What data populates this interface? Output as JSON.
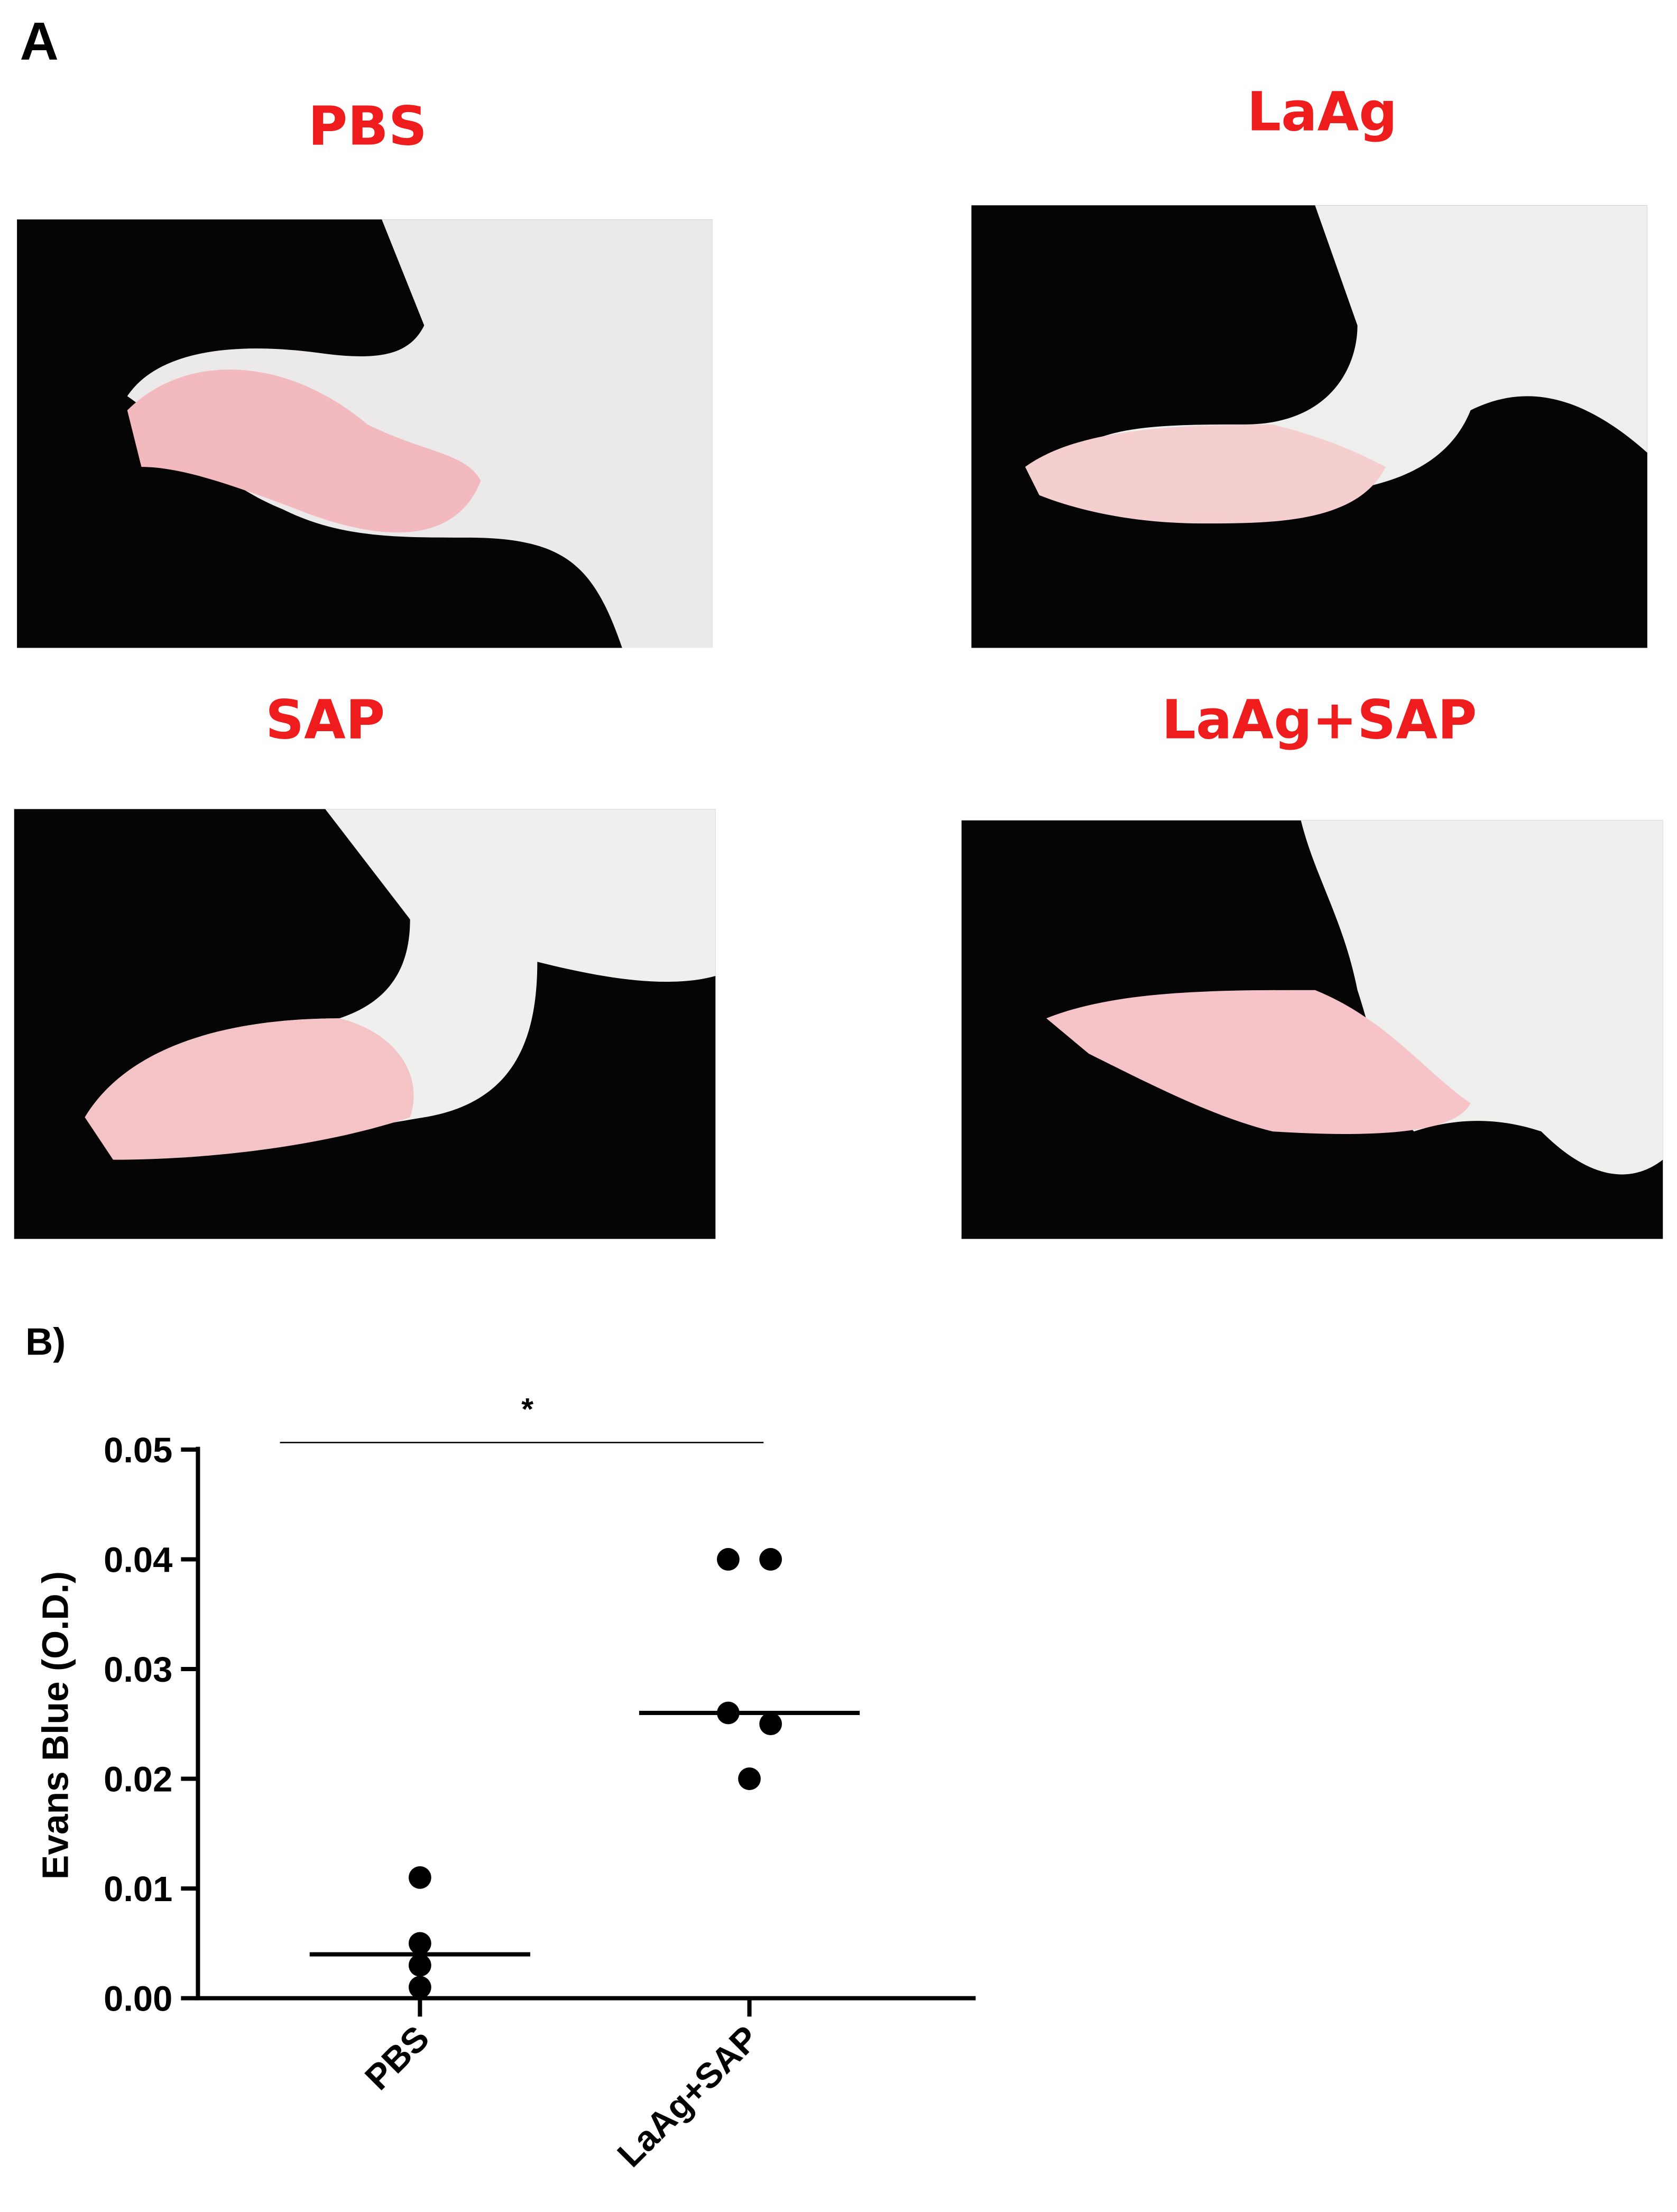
{
  "panel_a": {
    "label": "A",
    "photos": [
      {
        "label": "PBS"
      },
      {
        "label": "LaAg"
      },
      {
        "label": "SAP"
      },
      {
        "label": "LaAg+SAP"
      }
    ]
  },
  "chart_data": {
    "type": "dotplot",
    "panel_label": "B)",
    "y_label": "Evans Blue (O.D.)",
    "categories": [
      "PBS",
      "LaAg+SAP"
    ],
    "values": [
      [
        0.011,
        0.005,
        0.003,
        0.001
      ],
      [
        0.04,
        0.04,
        0.026,
        0.025,
        0.02
      ]
    ],
    "medians": [
      0.004,
      0.026
    ],
    "color": "#000000",
    "annotation": "*",
    "ylim": [
      0,
      0.05
    ],
    "yticks": [
      {
        "value": 0,
        "label": "0.00"
      },
      0.01,
      0.02,
      0.03,
      0.04,
      0.05
    ]
  }
}
